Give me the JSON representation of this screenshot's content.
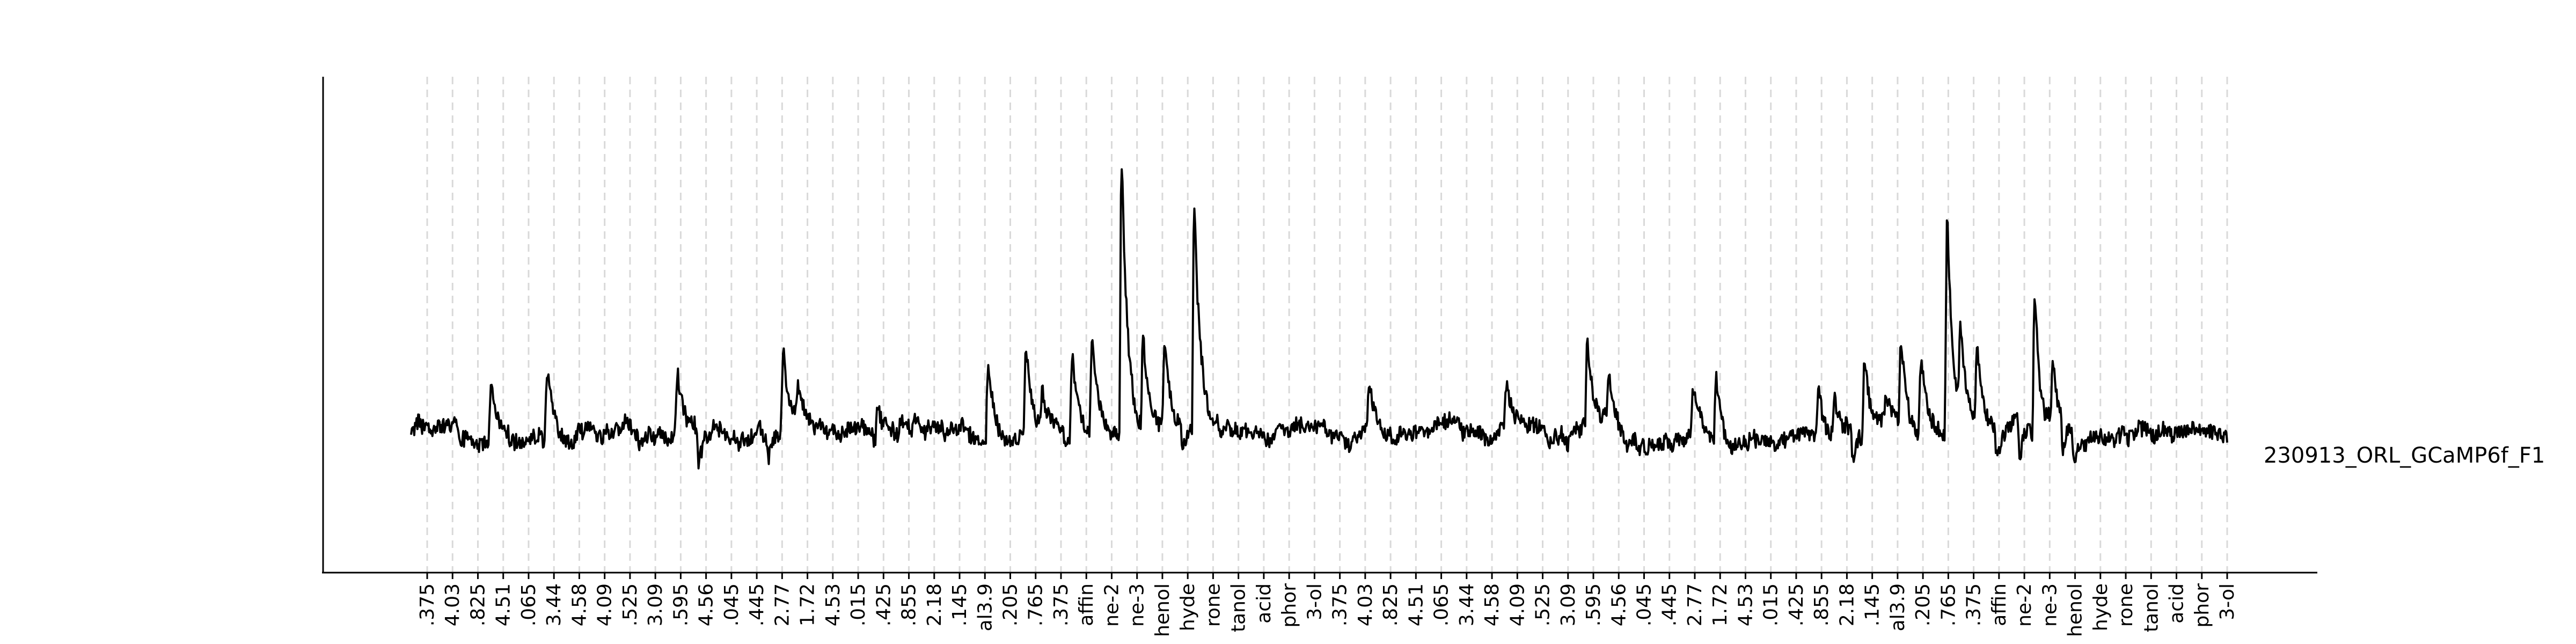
{
  "chart_data": {
    "type": "line",
    "title": "",
    "xlabel": "",
    "ylabel": "",
    "grid": "vertical dashed lines at stimulus times",
    "series": [
      {
        "name": "230913_ORL_GCaMP6f_F1"
      }
    ],
    "ylim": [
      -0.35,
      1.0
    ],
    "x_range": [
      0,
      1100
    ],
    "tick_labels": [
      ".375",
      "4.03",
      ".825",
      "4.51",
      ".065",
      "3.44",
      "4.58",
      "4.09",
      ".525",
      "3.09",
      ".595",
      "4.56",
      ".045",
      ".445",
      "2.77",
      "1.72",
      "4.53",
      ".015",
      ".425",
      ".855",
      "2.18",
      ".145",
      "al3.9",
      ".205",
      ".765",
      ".375",
      "affin",
      "ne-2",
      "ne-3",
      "henol",
      "hyde",
      "rone",
      "tanol",
      "acid",
      "phor",
      "3-ol",
      ".375",
      "4.03",
      ".825",
      "4.51",
      ".065",
      "3.44",
      "4.58",
      "4.09",
      ".525",
      "3.09",
      ".595",
      "4.56",
      ".045",
      ".445",
      "2.77",
      "1.72",
      "4.53",
      ".015",
      ".425",
      ".855",
      "2.18",
      ".145",
      "al3.9",
      ".205",
      ".765",
      ".375",
      "affin",
      "ne-2",
      "ne-3",
      "henol",
      "hyde",
      "rone",
      "tanol",
      "acid",
      "phor",
      "3-ol"
    ],
    "peaks": [
      {
        "x": 48,
        "y": 0.18
      },
      {
        "x": 82,
        "y": 0.22
      },
      {
        "x": 161,
        "y": 0.19
      },
      {
        "x": 174,
        "y": -0.13
      },
      {
        "x": 216,
        "y": -0.06
      },
      {
        "x": 225,
        "y": 0.28
      },
      {
        "x": 234,
        "y": 0.1
      },
      {
        "x": 282,
        "y": 0.1
      },
      {
        "x": 296,
        "y": 0.05
      },
      {
        "x": 349,
        "y": 0.25
      },
      {
        "x": 372,
        "y": 0.33
      },
      {
        "x": 382,
        "y": 0.13
      },
      {
        "x": 400,
        "y": 0.28
      },
      {
        "x": 412,
        "y": 0.35
      },
      {
        "x": 430,
        "y": 0.98
      },
      {
        "x": 443,
        "y": 0.33
      },
      {
        "x": 456,
        "y": 0.3
      },
      {
        "x": 467,
        "y": -0.1
      },
      {
        "x": 474,
        "y": 0.77
      },
      {
        "x": 580,
        "y": 0.18
      },
      {
        "x": 663,
        "y": 0.15
      },
      {
        "x": 712,
        "y": 0.29
      },
      {
        "x": 725,
        "y": 0.18
      },
      {
        "x": 776,
        "y": 0.16
      },
      {
        "x": 790,
        "y": 0.24
      },
      {
        "x": 852,
        "y": 0.19
      },
      {
        "x": 862,
        "y": 0.11
      },
      {
        "x": 873,
        "y": -0.11
      },
      {
        "x": 880,
        "y": 0.28
      },
      {
        "x": 893,
        "y": 0.09
      },
      {
        "x": 902,
        "y": 0.3
      },
      {
        "x": 914,
        "y": 0.26
      },
      {
        "x": 930,
        "y": 0.77
      },
      {
        "x": 938,
        "y": 0.3
      },
      {
        "x": 948,
        "y": 0.26
      },
      {
        "x": 960,
        "y": -0.11
      },
      {
        "x": 974,
        "y": -0.12
      },
      {
        "x": 983,
        "y": 0.52
      },
      {
        "x": 994,
        "y": 0.21
      },
      {
        "x": 1000,
        "y": -0.14
      },
      {
        "x": 1007,
        "y": -0.07
      }
    ]
  },
  "colors": {
    "trace": "#000000",
    "axis": "#000000",
    "grid": "#d9d9d9",
    "background": "#ffffff"
  }
}
